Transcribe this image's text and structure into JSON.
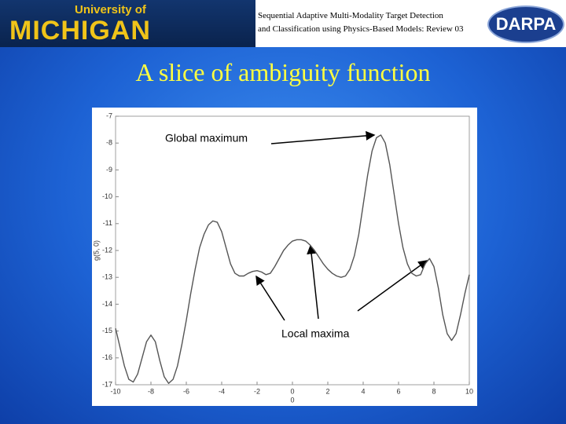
{
  "header": {
    "university": "University of",
    "logo": "MICHIGAN",
    "subtitle": [
      "Sequential Adaptive Multi-Modality Target Detection",
      "and Classification using Physics-Based Models: Review 03"
    ],
    "sponsor": "DARPA"
  },
  "chart_data": {
    "type": "line",
    "title": "A slice of ambiguity function",
    "y_label": "g(5, 0)",
    "x_label": "0",
    "annotations": [
      "Global maximum",
      "Local maxima"
    ],
    "color": "#555555",
    "xlim": [
      -10,
      10
    ],
    "ylim": [
      -17,
      -7
    ],
    "xticks": [
      -10,
      -8,
      -6,
      -4,
      -2,
      0,
      2,
      4,
      6,
      8,
      10
    ],
    "yticks": [
      -17,
      -16,
      -15,
      -14,
      -13,
      -12,
      -11,
      -10,
      -9,
      -8,
      -7
    ],
    "x": [
      -10,
      -9.75,
      -9.5,
      -9.25,
      -9,
      -8.75,
      -8.5,
      -8.25,
      -8,
      -7.75,
      -7.5,
      -7.25,
      -7,
      -6.75,
      -6.5,
      -6.25,
      -6,
      -5.75,
      -5.5,
      -5.25,
      -5,
      -4.75,
      -4.5,
      -4.25,
      -4,
      -3.75,
      -3.5,
      -3.25,
      -3,
      -2.75,
      -2.5,
      -2.25,
      -2,
      -1.75,
      -1.5,
      -1.25,
      -1,
      -0.75,
      -0.5,
      -0.25,
      0,
      0.25,
      0.5,
      0.75,
      1,
      1.25,
      1.5,
      1.75,
      2,
      2.25,
      2.5,
      2.75,
      3,
      3.25,
      3.5,
      3.75,
      4,
      4.25,
      4.5,
      4.75,
      5,
      5.25,
      5.5,
      5.75,
      6,
      6.25,
      6.5,
      6.75,
      7,
      7.25,
      7.5,
      7.75,
      8,
      8.25,
      8.5,
      8.75,
      9,
      9.25,
      9.5,
      9.75,
      10
    ],
    "values": [
      -14.9,
      -15.6,
      -16.3,
      -16.8,
      -16.9,
      -16.6,
      -16.0,
      -15.4,
      -15.15,
      -15.4,
      -16.1,
      -16.7,
      -16.95,
      -16.8,
      -16.3,
      -15.5,
      -14.6,
      -13.6,
      -12.7,
      -11.9,
      -11.4,
      -11.05,
      -10.9,
      -10.95,
      -11.3,
      -11.9,
      -12.5,
      -12.85,
      -12.95,
      -12.95,
      -12.85,
      -12.78,
      -12.75,
      -12.8,
      -12.9,
      -12.85,
      -12.6,
      -12.3,
      -12.0,
      -11.8,
      -11.65,
      -11.6,
      -11.6,
      -11.65,
      -11.8,
      -12.0,
      -12.25,
      -12.5,
      -12.7,
      -12.85,
      -12.95,
      -13.0,
      -12.95,
      -12.7,
      -12.2,
      -11.4,
      -10.3,
      -9.2,
      -8.3,
      -7.8,
      -7.7,
      -8.0,
      -8.8,
      -9.9,
      -11.0,
      -11.9,
      -12.5,
      -12.85,
      -12.95,
      -12.9,
      -12.5,
      -12.3,
      -12.6,
      -13.4,
      -14.4,
      -15.1,
      -15.35,
      -15.1,
      -14.4,
      -13.6,
      -12.9
    ]
  }
}
